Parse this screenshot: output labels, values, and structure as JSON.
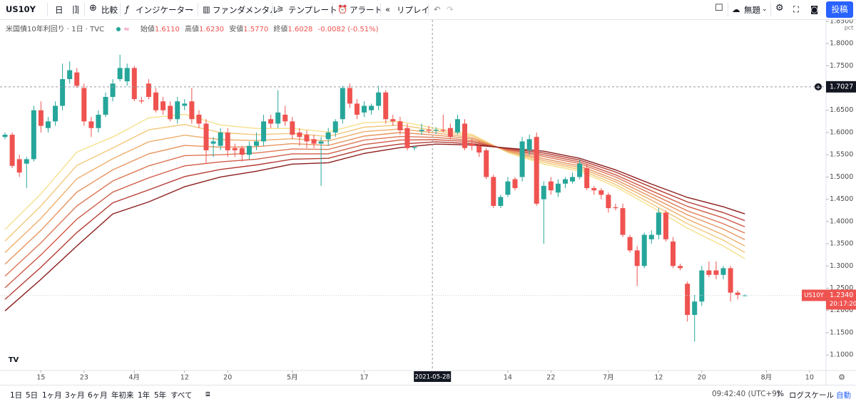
{
  "toolbar": {
    "symbol": "US10Y",
    "interval": "日",
    "compare": "比較",
    "indicators": "インジケーター",
    "fundamentals": "ファンダメンタル",
    "templates": "テンプレート",
    "alert": "アラート",
    "replay": "リプレイ",
    "layout": "無題",
    "publish": "投稿"
  },
  "legend": {
    "title": "米国債10年利回り · 1日 · TVC",
    "open_label": "始値",
    "open": "1.6110",
    "high_label": "高値",
    "high": "1.6230",
    "low_label": "安値",
    "low": "1.5770",
    "close_label": "終値",
    "close": "1.6028",
    "change": "-0.0082 (-0.51%)"
  },
  "chart_data": {
    "type": "candlestick",
    "up_color": "#26a69a",
    "down_color": "#ef5350",
    "grid": false,
    "unit_label": "pct",
    "xlim": [
      -0.7,
      114.3
    ],
    "xticks": [
      {
        "value": 5,
        "label": "15"
      },
      {
        "value": 11,
        "label": "23"
      },
      {
        "value": 18,
        "label": "4月"
      },
      {
        "value": 25,
        "label": "12"
      },
      {
        "value": 31,
        "label": "20"
      },
      {
        "value": 40,
        "label": "5月"
      },
      {
        "value": 50,
        "label": "17"
      },
      {
        "value": 70,
        "label": "14"
      },
      {
        "value": 76,
        "label": "22"
      },
      {
        "value": 84,
        "label": "7月"
      },
      {
        "value": 91,
        "label": "12"
      },
      {
        "value": 97,
        "label": "20"
      },
      {
        "value": 106,
        "label": "8月"
      },
      {
        "value": 112,
        "label": "10"
      }
    ],
    "ylim": [
      1.065,
      1.853
    ],
    "yticks": [
      {
        "value": 1.1,
        "label": "1.1000"
      },
      {
        "value": 1.15,
        "label": "1.1500"
      },
      {
        "value": 1.2,
        "label": "1.2000"
      },
      {
        "value": 1.25,
        "label": "1.2500"
      },
      {
        "value": 1.3,
        "label": "1.3000"
      },
      {
        "value": 1.35,
        "label": "1.3500"
      },
      {
        "value": 1.4,
        "label": "1.4000"
      },
      {
        "value": 1.45,
        "label": "1.4500"
      },
      {
        "value": 1.5,
        "label": "1.5000"
      },
      {
        "value": 1.55,
        "label": "1.5500"
      },
      {
        "value": 1.6,
        "label": "1.6000"
      },
      {
        "value": 1.65,
        "label": "1.6500"
      },
      {
        "value": 1.7,
        "label": "1.7000"
      },
      {
        "value": 1.75,
        "label": "1.7500"
      },
      {
        "value": 1.8,
        "label": "1.8000"
      },
      {
        "value": 1.85,
        "label": "1.8500"
      }
    ],
    "open": [
      1.59,
      1.595,
      1.54,
      1.53,
      1.54,
      1.65,
      1.61,
      1.625,
      1.66,
      1.72,
      1.735,
      1.7,
      1.625,
      1.61,
      1.64,
      1.68,
      1.72,
      1.715,
      1.745,
      1.672,
      1.71,
      1.69,
      1.67,
      1.66,
      1.63,
      1.66,
      1.67,
      1.64,
      1.62,
      1.575,
      1.57,
      1.6,
      1.565,
      1.565,
      1.55,
      1.57,
      1.58,
      1.63,
      1.62,
      1.64,
      1.625,
      1.6,
      1.595,
      1.585,
      1.575,
      1.585,
      1.6,
      1.63,
      1.7,
      1.665,
      1.645,
      1.65,
      1.66,
      1.69,
      1.63,
      1.625,
      1.61,
      1.565,
      1.603,
      1.606,
      1.604,
      1.606,
      1.61,
      1.6,
      1.62,
      1.575,
      1.57,
      1.56,
      1.5,
      1.435,
      1.46,
      1.495,
      1.5,
      1.56,
      1.59,
      1.45,
      1.49,
      1.465,
      1.485,
      1.49,
      1.5,
      1.52,
      1.475,
      1.47,
      1.46,
      1.432,
      1.43,
      1.365,
      1.335,
      1.3,
      1.36,
      1.37,
      1.42,
      1.355,
      1.3,
      1.26,
      1.19,
      1.22,
      1.29,
      1.29,
      1.28,
      1.295,
      1.24,
      1.234
    ],
    "high": [
      1.6,
      1.6,
      1.55,
      1.545,
      1.66,
      1.67,
      1.635,
      1.67,
      1.755,
      1.76,
      1.745,
      1.71,
      1.635,
      1.65,
      1.69,
      1.72,
      1.775,
      1.755,
      1.75,
      1.68,
      1.72,
      1.7,
      1.68,
      1.67,
      1.68,
      1.675,
      1.7,
      1.65,
      1.63,
      1.59,
      1.61,
      1.61,
      1.575,
      1.57,
      1.58,
      1.6,
      1.64,
      1.64,
      1.695,
      1.66,
      1.635,
      1.61,
      1.605,
      1.595,
      1.59,
      1.61,
      1.63,
      1.705,
      1.71,
      1.675,
      1.67,
      1.665,
      1.705,
      1.695,
      1.64,
      1.635,
      1.62,
      1.57,
      1.62,
      1.615,
      1.612,
      1.64,
      1.62,
      1.64,
      1.63,
      1.585,
      1.58,
      1.565,
      1.505,
      1.46,
      1.5,
      1.5,
      1.59,
      1.595,
      1.6,
      1.49,
      1.5,
      1.495,
      1.5,
      1.51,
      1.54,
      1.53,
      1.48,
      1.475,
      1.465,
      1.44,
      1.44,
      1.37,
      1.345,
      1.375,
      1.38,
      1.43,
      1.425,
      1.365,
      1.305,
      1.265,
      1.235,
      1.3,
      1.31,
      1.31,
      1.3,
      1.3,
      1.245,
      1.236
    ],
    "low": [
      1.585,
      1.52,
      1.5,
      1.475,
      1.535,
      1.6,
      1.6,
      1.615,
      1.65,
      1.71,
      1.7,
      1.615,
      1.59,
      1.6,
      1.635,
      1.67,
      1.715,
      1.705,
      1.67,
      1.665,
      1.675,
      1.645,
      1.64,
      1.625,
      1.62,
      1.65,
      1.62,
      1.61,
      1.53,
      1.545,
      1.56,
      1.545,
      1.545,
      1.535,
      1.54,
      1.56,
      1.57,
      1.61,
      1.61,
      1.615,
      1.585,
      1.57,
      1.565,
      1.565,
      1.48,
      1.57,
      1.59,
      1.62,
      1.655,
      1.63,
      1.635,
      1.64,
      1.65,
      1.62,
      1.615,
      1.595,
      1.56,
      1.56,
      1.595,
      1.598,
      1.597,
      1.6,
      1.585,
      1.595,
      1.56,
      1.56,
      1.545,
      1.495,
      1.43,
      1.43,
      1.455,
      1.47,
      1.49,
      1.55,
      1.435,
      1.35,
      1.46,
      1.455,
      1.475,
      1.485,
      1.495,
      1.47,
      1.46,
      1.45,
      1.42,
      1.425,
      1.365,
      1.33,
      1.255,
      1.295,
      1.35,
      1.36,
      1.355,
      1.295,
      1.29,
      1.175,
      1.13,
      1.21,
      1.275,
      1.27,
      1.27,
      1.22,
      1.225,
      1.232
    ],
    "close": [
      1.595,
      1.525,
      1.51,
      1.54,
      1.65,
      1.615,
      1.625,
      1.66,
      1.72,
      1.74,
      1.705,
      1.625,
      1.61,
      1.64,
      1.68,
      1.71,
      1.745,
      1.745,
      1.675,
      1.67,
      1.68,
      1.65,
      1.65,
      1.63,
      1.67,
      1.665,
      1.63,
      1.62,
      1.56,
      1.58,
      1.6,
      1.56,
      1.56,
      1.55,
      1.57,
      1.58,
      1.625,
      1.62,
      1.645,
      1.625,
      1.595,
      1.59,
      1.58,
      1.575,
      1.58,
      1.6,
      1.625,
      1.7,
      1.665,
      1.64,
      1.66,
      1.66,
      1.69,
      1.63,
      1.625,
      1.605,
      1.565,
      1.567,
      1.606,
      1.604,
      1.606,
      1.604,
      1.59,
      1.63,
      1.565,
      1.57,
      1.555,
      1.5,
      1.435,
      1.455,
      1.49,
      1.475,
      1.58,
      1.585,
      1.44,
      1.48,
      1.47,
      1.485,
      1.495,
      1.5,
      1.53,
      1.475,
      1.47,
      1.46,
      1.43,
      1.43,
      1.37,
      1.335,
      1.3,
      1.37,
      1.37,
      1.42,
      1.36,
      1.3,
      1.295,
      1.19,
      1.22,
      1.29,
      1.28,
      1.28,
      1.295,
      1.24,
      1.235,
      1.234
    ],
    "series": [
      {
        "color": "#f6e08c",
        "x": [
          0,
          5,
          10,
          15,
          20,
          25,
          30,
          35,
          40,
          45,
          50,
          55,
          60,
          65,
          70,
          75,
          80,
          85,
          90,
          95,
          100,
          103
        ],
        "values": [
          1.382,
          1.462,
          1.556,
          1.59,
          1.633,
          1.641,
          1.617,
          1.609,
          1.609,
          1.601,
          1.622,
          1.625,
          1.609,
          1.596,
          1.555,
          1.529,
          1.513,
          1.478,
          1.433,
          1.385,
          1.345,
          1.316
        ]
      },
      {
        "color": "#f3c87a",
        "x": [
          0,
          5,
          10,
          15,
          20,
          25,
          30,
          35,
          40,
          45,
          50,
          55,
          60,
          65,
          70,
          75,
          80,
          85,
          90,
          95,
          100,
          103
        ],
        "values": [
          1.356,
          1.435,
          1.526,
          1.565,
          1.606,
          1.618,
          1.6,
          1.595,
          1.598,
          1.591,
          1.612,
          1.617,
          1.604,
          1.593,
          1.556,
          1.533,
          1.517,
          1.483,
          1.44,
          1.395,
          1.358,
          1.33
        ]
      },
      {
        "color": "#efae6c",
        "x": [
          0,
          5,
          10,
          15,
          20,
          25,
          30,
          35,
          40,
          45,
          50,
          55,
          60,
          65,
          70,
          75,
          80,
          85,
          90,
          95,
          100,
          103
        ],
        "values": [
          1.33,
          1.407,
          1.496,
          1.541,
          1.579,
          1.594,
          1.584,
          1.582,
          1.586,
          1.581,
          1.602,
          1.608,
          1.599,
          1.589,
          1.558,
          1.537,
          1.521,
          1.489,
          1.448,
          1.405,
          1.37,
          1.345
        ]
      },
      {
        "color": "#e8945f",
        "x": [
          0,
          5,
          10,
          15,
          20,
          25,
          30,
          35,
          40,
          45,
          50,
          55,
          60,
          65,
          70,
          75,
          80,
          85,
          90,
          95,
          100,
          103
        ],
        "values": [
          1.304,
          1.38,
          1.466,
          1.516,
          1.552,
          1.571,
          1.567,
          1.568,
          1.575,
          1.571,
          1.592,
          1.6,
          1.594,
          1.586,
          1.559,
          1.541,
          1.525,
          1.494,
          1.455,
          1.415,
          1.383,
          1.359
        ]
      },
      {
        "color": "#dd7855",
        "x": [
          0,
          5,
          10,
          15,
          20,
          25,
          30,
          35,
          40,
          45,
          50,
          55,
          60,
          65,
          70,
          75,
          80,
          85,
          90,
          95,
          100,
          103
        ],
        "values": [
          1.277,
          1.352,
          1.435,
          1.491,
          1.525,
          1.548,
          1.55,
          1.554,
          1.563,
          1.562,
          1.583,
          1.591,
          1.589,
          1.582,
          1.561,
          1.546,
          1.53,
          1.5,
          1.462,
          1.424,
          1.395,
          1.374
        ]
      },
      {
        "color": "#cf5b47",
        "x": [
          0,
          5,
          10,
          15,
          20,
          25,
          30,
          35,
          40,
          45,
          50,
          55,
          60,
          65,
          70,
          75,
          80,
          85,
          90,
          95,
          100,
          103
        ],
        "values": [
          1.251,
          1.325,
          1.405,
          1.466,
          1.498,
          1.525,
          1.534,
          1.54,
          1.552,
          1.552,
          1.573,
          1.583,
          1.584,
          1.579,
          1.562,
          1.55,
          1.534,
          1.505,
          1.469,
          1.434,
          1.408,
          1.388
        ]
      },
      {
        "color": "#b53b33",
        "x": [
          0,
          5,
          10,
          15,
          20,
          25,
          30,
          35,
          40,
          45,
          50,
          55,
          60,
          65,
          70,
          75,
          80,
          85,
          90,
          95,
          100,
          103
        ],
        "values": [
          1.225,
          1.297,
          1.375,
          1.442,
          1.471,
          1.501,
          1.517,
          1.527,
          1.54,
          1.542,
          1.563,
          1.574,
          1.579,
          1.575,
          1.564,
          1.554,
          1.538,
          1.511,
          1.477,
          1.444,
          1.42,
          1.402
        ]
      },
      {
        "color": "#8c1c1c",
        "x": [
          0,
          5,
          10,
          15,
          20,
          25,
          30,
          35,
          40,
          45,
          50,
          55,
          60,
          65,
          70,
          75,
          80,
          85,
          90,
          95,
          100,
          103
        ],
        "values": [
          1.199,
          1.27,
          1.345,
          1.417,
          1.444,
          1.478,
          1.5,
          1.513,
          1.529,
          1.532,
          1.553,
          1.566,
          1.574,
          1.572,
          1.565,
          1.558,
          1.542,
          1.516,
          1.484,
          1.454,
          1.433,
          1.417
        ]
      }
    ],
    "crosshair": {
      "x": 59.5,
      "x_label": "2021-05-28",
      "y": 1.7027
    },
    "last": {
      "symbol": "US10Y",
      "value": 1.234,
      "label": "1.2340",
      "countdown": "20:17:20"
    }
  },
  "bottom_bar": {
    "ranges": [
      "1日",
      "5日",
      "1ヶ月",
      "3ヶ月",
      "6ヶ月",
      "年初来",
      "1年",
      "5年",
      "すべて"
    ],
    "time": "09:42:40 (UTC+9)",
    "percent": "%",
    "log": "ログスケール",
    "auto": "自動"
  }
}
